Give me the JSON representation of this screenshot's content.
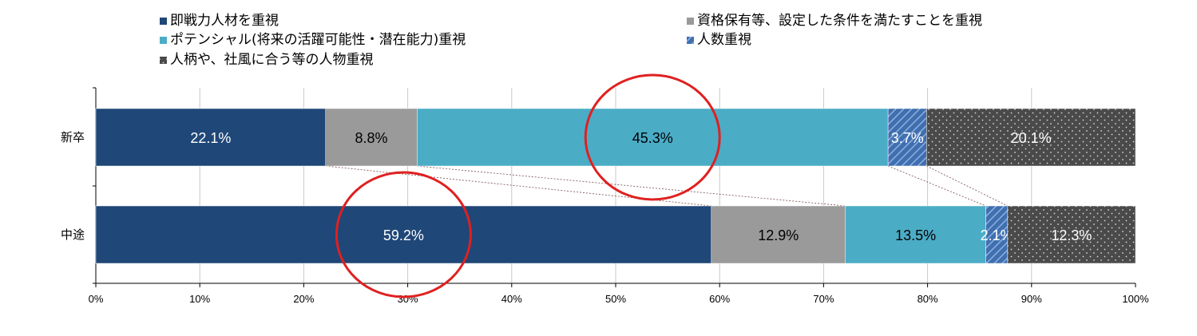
{
  "chart_data": {
    "type": "bar",
    "orientation": "horizontal",
    "stacked": "percent",
    "categories": [
      "新卒",
      "中途"
    ],
    "series": [
      {
        "name": "即戦力人材を重視",
        "values": [
          22.1,
          59.2
        ],
        "color": "#1f4778",
        "pattern": "solid",
        "label_color": "#ffffff"
      },
      {
        "name": "資格保有等、設定した条件を満たすことを重視",
        "values": [
          8.8,
          12.9
        ],
        "color": "#9a9a9a",
        "pattern": "solid",
        "label_color": "#000000"
      },
      {
        "name": "ポテンシャル(将来の活躍可能性・潜在能力)重視",
        "values": [
          45.3,
          13.5
        ],
        "color": "#4bacc6",
        "pattern": "solid",
        "label_color": "#000000"
      },
      {
        "name": "人数重視",
        "values": [
          3.7,
          2.1
        ],
        "color": "#3f6fb0",
        "pattern": "diagonal",
        "label_color": "#ffffff"
      },
      {
        "name": "人柄や、社風に合う等の人物重視",
        "values": [
          20.1,
          12.3
        ],
        "color": "#4a4a4a",
        "pattern": "dots",
        "label_color": "#ffffff"
      }
    ],
    "data_labels": [
      [
        "22.1%",
        "8.8%",
        "45.3%",
        "3.7%",
        "20.1%"
      ],
      [
        "59.2%",
        "12.9%",
        "13.5%",
        "2.1%",
        "12.3%"
      ]
    ],
    "xlim": [
      0,
      100
    ],
    "x_ticks": [
      "0%",
      "10%",
      "20%",
      "30%",
      "40%",
      "50%",
      "60%",
      "70%",
      "80%",
      "90%",
      "100%"
    ],
    "grid": "vertical",
    "legend_position": "top",
    "series_connector_lines": true,
    "highlight_circles": [
      {
        "category": "新卒",
        "series": "ポテンシャル(将来の活躍可能性・潜在能力)重視",
        "color": "#e02020"
      },
      {
        "category": "中途",
        "series": "即戦力人材を重視",
        "color": "#e02020"
      }
    ]
  }
}
